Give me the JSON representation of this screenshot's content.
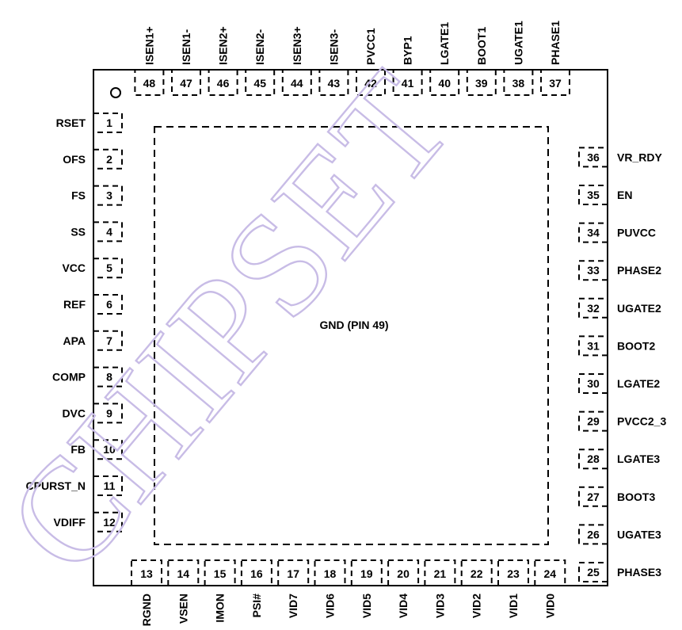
{
  "package": {
    "center_label": "GND (PIN 49)",
    "pin1_marker": "O",
    "watermark_text": "CHIPSET"
  },
  "pins": {
    "left": [
      {
        "num": "1",
        "name": "RSET"
      },
      {
        "num": "2",
        "name": "OFS"
      },
      {
        "num": "3",
        "name": "FS"
      },
      {
        "num": "4",
        "name": "SS"
      },
      {
        "num": "5",
        "name": "VCC"
      },
      {
        "num": "6",
        "name": "REF"
      },
      {
        "num": "7",
        "name": "APA"
      },
      {
        "num": "8",
        "name": "COMP"
      },
      {
        "num": "9",
        "name": "DVC"
      },
      {
        "num": "10",
        "name": "FB"
      },
      {
        "num": "11",
        "name": "CPURST_N"
      },
      {
        "num": "12",
        "name": "VDIFF"
      }
    ],
    "bottom": [
      {
        "num": "13",
        "name": "RGND"
      },
      {
        "num": "14",
        "name": "VSEN"
      },
      {
        "num": "15",
        "name": "IMON"
      },
      {
        "num": "16",
        "name": "PSI#"
      },
      {
        "num": "17",
        "name": "VID7"
      },
      {
        "num": "18",
        "name": "VID6"
      },
      {
        "num": "19",
        "name": "VID5"
      },
      {
        "num": "20",
        "name": "VID4"
      },
      {
        "num": "21",
        "name": "VID3"
      },
      {
        "num": "22",
        "name": "VID2"
      },
      {
        "num": "23",
        "name": "VID1"
      },
      {
        "num": "24",
        "name": "VID0"
      }
    ],
    "right": [
      {
        "num": "25",
        "name": "PHASE3"
      },
      {
        "num": "26",
        "name": "UGATE3"
      },
      {
        "num": "27",
        "name": "BOOT3"
      },
      {
        "num": "28",
        "name": "LGATE3"
      },
      {
        "num": "29",
        "name": "PVCC2_3"
      },
      {
        "num": "30",
        "name": "LGATE2"
      },
      {
        "num": "31",
        "name": "BOOT2"
      },
      {
        "num": "32",
        "name": "UGATE2"
      },
      {
        "num": "33",
        "name": "PHASE2"
      },
      {
        "num": "34",
        "name": "PUVCC"
      },
      {
        "num": "35",
        "name": "EN"
      },
      {
        "num": "36",
        "name": "VR_RDY"
      }
    ],
    "top": [
      {
        "num": "37",
        "name": "PHASE1"
      },
      {
        "num": "38",
        "name": "UGATE1"
      },
      {
        "num": "39",
        "name": "BOOT1"
      },
      {
        "num": "40",
        "name": "LGATE1"
      },
      {
        "num": "41",
        "name": "BYP1"
      },
      {
        "num": "42",
        "name": "PVCC1"
      },
      {
        "num": "43",
        "name": "ISEN3-"
      },
      {
        "num": "44",
        "name": "ISEN3+"
      },
      {
        "num": "45",
        "name": "ISEN2-"
      },
      {
        "num": "46",
        "name": "ISEN2+"
      },
      {
        "num": "47",
        "name": "ISEN1-"
      },
      {
        "num": "48",
        "name": "ISEN1+"
      }
    ]
  },
  "colors": {
    "outline": "#000000",
    "text": "#000000",
    "watermark": "#c8bce6"
  }
}
